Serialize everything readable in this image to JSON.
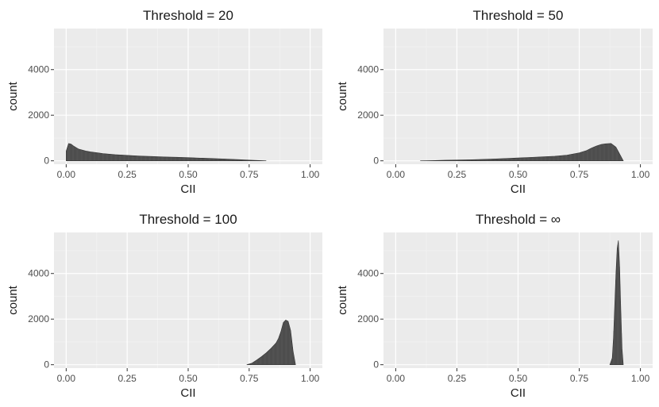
{
  "chart_data": [
    {
      "type": "bar",
      "title": "Threshold = 20",
      "xlabel": "CII",
      "ylabel": "count",
      "xlim": [
        -0.05,
        1.05
      ],
      "ylim": [
        -150,
        5800
      ],
      "xticks": [
        0.0,
        0.25,
        0.5,
        0.75,
        1.0
      ],
      "xtick_labels": [
        "0.00",
        "0.25",
        "0.50",
        "0.75",
        "1.00"
      ],
      "yticks": [
        0,
        2000,
        4000
      ],
      "ytick_labels": [
        "0",
        "2000",
        "4000"
      ],
      "grid": true,
      "bar_color": "#595959",
      "x": [
        0.0,
        0.01,
        0.02,
        0.03,
        0.05,
        0.08,
        0.1,
        0.15,
        0.2,
        0.25,
        0.3,
        0.35,
        0.4,
        0.45,
        0.5,
        0.55,
        0.6,
        0.65,
        0.7,
        0.75,
        0.8,
        0.82
      ],
      "values": [
        430,
        760,
        730,
        650,
        520,
        430,
        390,
        320,
        270,
        240,
        210,
        190,
        170,
        155,
        140,
        120,
        100,
        80,
        55,
        30,
        10,
        0
      ]
    },
    {
      "type": "bar",
      "title": "Threshold = 50",
      "xlabel": "CII",
      "ylabel": "count",
      "xlim": [
        -0.05,
        1.05
      ],
      "ylim": [
        -150,
        5800
      ],
      "xticks": [
        0.0,
        0.25,
        0.5,
        0.75,
        1.0
      ],
      "xtick_labels": [
        "0.00",
        "0.25",
        "0.50",
        "0.75",
        "1.00"
      ],
      "yticks": [
        0,
        2000,
        4000
      ],
      "ytick_labels": [
        "0",
        "2000",
        "4000"
      ],
      "grid": true,
      "bar_color": "#595959",
      "x": [
        0.1,
        0.15,
        0.2,
        0.25,
        0.3,
        0.35,
        0.4,
        0.45,
        0.5,
        0.55,
        0.6,
        0.65,
        0.7,
        0.75,
        0.78,
        0.8,
        0.82,
        0.84,
        0.86,
        0.88,
        0.9,
        0.92,
        0.93
      ],
      "values": [
        0,
        10,
        25,
        35,
        45,
        60,
        80,
        100,
        125,
        150,
        175,
        200,
        250,
        350,
        450,
        560,
        650,
        720,
        750,
        760,
        600,
        200,
        0
      ]
    },
    {
      "type": "bar",
      "title": "Threshold = 100",
      "xlabel": "CII",
      "ylabel": "count",
      "xlim": [
        -0.05,
        1.05
      ],
      "ylim": [
        -150,
        5800
      ],
      "xticks": [
        0.0,
        0.25,
        0.5,
        0.75,
        1.0
      ],
      "xtick_labels": [
        "0.00",
        "0.25",
        "0.50",
        "0.75",
        "1.00"
      ],
      "yticks": [
        0,
        2000,
        4000
      ],
      "ytick_labels": [
        "0",
        "2000",
        "4000"
      ],
      "grid": true,
      "bar_color": "#595959",
      "x": [
        0.74,
        0.76,
        0.78,
        0.8,
        0.82,
        0.84,
        0.86,
        0.87,
        0.88,
        0.89,
        0.9,
        0.91,
        0.92,
        0.93,
        0.94
      ],
      "values": [
        0,
        60,
        200,
        350,
        520,
        720,
        950,
        1150,
        1450,
        1850,
        1960,
        1900,
        1500,
        600,
        0
      ]
    },
    {
      "type": "bar",
      "title": "Threshold = ∞",
      "xlabel": "CII",
      "ylabel": "count",
      "xlim": [
        -0.05,
        1.05
      ],
      "ylim": [
        -150,
        5800
      ],
      "xticks": [
        0.0,
        0.25,
        0.5,
        0.75,
        1.0
      ],
      "xtick_labels": [
        "0.00",
        "0.25",
        "0.50",
        "0.75",
        "1.00"
      ],
      "yticks": [
        0,
        2000,
        4000
      ],
      "ytick_labels": [
        "0",
        "2000",
        "4000"
      ],
      "grid": true,
      "bar_color": "#595959",
      "x": [
        0.875,
        0.885,
        0.89,
        0.895,
        0.9,
        0.905,
        0.91,
        0.915,
        0.92,
        0.925,
        0.93
      ],
      "values": [
        0,
        300,
        1200,
        2600,
        4000,
        5100,
        5450,
        4300,
        2400,
        700,
        0
      ]
    }
  ]
}
